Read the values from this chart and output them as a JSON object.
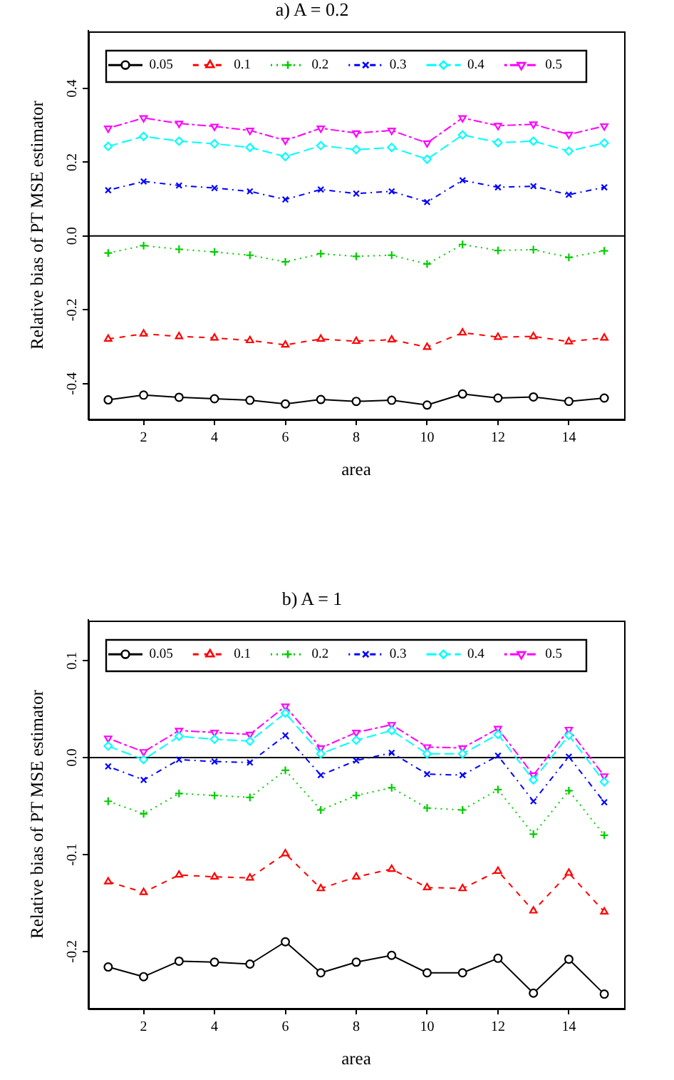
{
  "chart_data": [
    {
      "type": "line",
      "title": "a) A = 0.2",
      "xlabel": "area",
      "ylabel": "Relative bias of PT MSE estimator",
      "x": [
        1,
        2,
        3,
        4,
        5,
        6,
        7,
        8,
        9,
        10,
        11,
        12,
        13,
        14,
        15
      ],
      "xlim": [
        0.44,
        15.56
      ],
      "xticks": [
        2,
        4,
        6,
        8,
        10,
        12,
        14
      ],
      "ylim": [
        -0.497,
        0.556
      ],
      "yticks": [
        -0.4,
        -0.2,
        {
          "value": 0,
          "label": "0.0"
        },
        0.2,
        0.4
      ],
      "legend": "top",
      "ref_lines": [
        {
          "axis": "y",
          "value": 0,
          "color": "#000000"
        }
      ],
      "series": [
        {
          "name": "0.05",
          "color": "#000000",
          "marker": "circle",
          "line_style": "solid",
          "values": [
            -0.444,
            -0.431,
            -0.437,
            -0.441,
            -0.445,
            -0.455,
            -0.443,
            -0.448,
            -0.445,
            -0.458,
            -0.428,
            -0.439,
            -0.436,
            -0.448,
            -0.439
          ]
        },
        {
          "name": "0.1",
          "color": "#ff0000",
          "marker": "triangle",
          "line_style": "dashed",
          "values": [
            -0.279,
            -0.265,
            -0.272,
            -0.276,
            -0.283,
            -0.295,
            -0.279,
            -0.285,
            -0.281,
            -0.301,
            -0.262,
            -0.274,
            -0.272,
            -0.286,
            -0.276
          ]
        },
        {
          "name": "0.2",
          "color": "#00cd00",
          "marker": "cross",
          "line_style": "dotted",
          "values": [
            -0.046,
            -0.026,
            -0.036,
            -0.043,
            -0.052,
            -0.07,
            -0.048,
            -0.055,
            -0.052,
            -0.076,
            -0.023,
            -0.039,
            -0.037,
            -0.058,
            -0.04
          ]
        },
        {
          "name": "0.3",
          "color": "#0000ff",
          "marker": "x",
          "line_style": "dashdot",
          "values": [
            0.124,
            0.148,
            0.137,
            0.13,
            0.121,
            0.099,
            0.126,
            0.115,
            0.121,
            0.092,
            0.151,
            0.132,
            0.135,
            0.112,
            0.132
          ]
        },
        {
          "name": "0.4",
          "color": "#00ffff",
          "marker": "diamond",
          "line_style": "longdash",
          "values": [
            0.243,
            0.27,
            0.257,
            0.25,
            0.24,
            0.215,
            0.245,
            0.234,
            0.24,
            0.208,
            0.274,
            0.253,
            0.257,
            0.23,
            0.252
          ]
        },
        {
          "name": "0.5",
          "color": "#ff00ff",
          "marker": "triangle-down",
          "line_style": "twodash",
          "values": [
            0.292,
            0.32,
            0.305,
            0.297,
            0.286,
            0.259,
            0.292,
            0.279,
            0.286,
            0.252,
            0.32,
            0.299,
            0.303,
            0.275,
            0.298
          ]
        }
      ]
    },
    {
      "type": "line",
      "title": "b) A = 1",
      "xlabel": "area",
      "ylabel": "Relative bias of PT MSE estimator",
      "x": [
        1,
        2,
        3,
        4,
        5,
        6,
        7,
        8,
        9,
        10,
        11,
        12,
        13,
        14,
        15
      ],
      "xlim": [
        0.44,
        15.56
      ],
      "xticks": [
        2,
        4,
        6,
        8,
        10,
        12,
        14
      ],
      "ylim": [
        -0.259,
        0.142
      ],
      "yticks": [
        -0.2,
        -0.1,
        {
          "value": 0,
          "label": "0.0"
        },
        0.1
      ],
      "legend": "top",
      "ref_lines": [
        {
          "axis": "y",
          "value": 0,
          "color": "#000000"
        }
      ],
      "series": [
        {
          "name": "0.05",
          "color": "#000000",
          "marker": "circle",
          "line_style": "solid",
          "values": [
            -0.216,
            -0.226,
            -0.21,
            -0.211,
            -0.213,
            -0.19,
            -0.222,
            -0.211,
            -0.204,
            -0.222,
            -0.222,
            -0.207,
            -0.243,
            -0.208,
            -0.244
          ]
        },
        {
          "name": "0.1",
          "color": "#ff0000",
          "marker": "triangle",
          "line_style": "dashed",
          "values": [
            -0.128,
            -0.139,
            -0.121,
            -0.123,
            -0.124,
            -0.099,
            -0.135,
            -0.123,
            -0.115,
            -0.134,
            -0.135,
            -0.117,
            -0.158,
            -0.119,
            -0.159
          ]
        },
        {
          "name": "0.2",
          "color": "#00cd00",
          "marker": "cross",
          "line_style": "dotted",
          "values": [
            -0.045,
            -0.058,
            -0.037,
            -0.039,
            -0.041,
            -0.013,
            -0.054,
            -0.039,
            -0.031,
            -0.052,
            -0.054,
            -0.033,
            -0.079,
            -0.034,
            -0.08
          ]
        },
        {
          "name": "0.3",
          "color": "#0000ff",
          "marker": "x",
          "line_style": "dashdot",
          "values": [
            -0.009,
            -0.023,
            -0.002,
            -0.004,
            -0.005,
            0.023,
            -0.018,
            -0.003,
            0.005,
            -0.017,
            -0.018,
            0.002,
            -0.045,
            0.001,
            -0.046
          ]
        },
        {
          "name": "0.4",
          "color": "#00ffff",
          "marker": "diamond",
          "line_style": "longdash",
          "values": [
            0.012,
            -0.002,
            0.022,
            0.019,
            0.017,
            0.046,
            0.004,
            0.018,
            0.028,
            0.004,
            0.004,
            0.024,
            -0.023,
            0.023,
            -0.025
          ]
        },
        {
          "name": "0.5",
          "color": "#ff00ff",
          "marker": "triangle-down",
          "line_style": "twodash",
          "values": [
            0.02,
            0.006,
            0.028,
            0.026,
            0.024,
            0.053,
            0.01,
            0.026,
            0.034,
            0.011,
            0.01,
            0.03,
            -0.018,
            0.029,
            -0.019
          ]
        }
      ]
    }
  ]
}
